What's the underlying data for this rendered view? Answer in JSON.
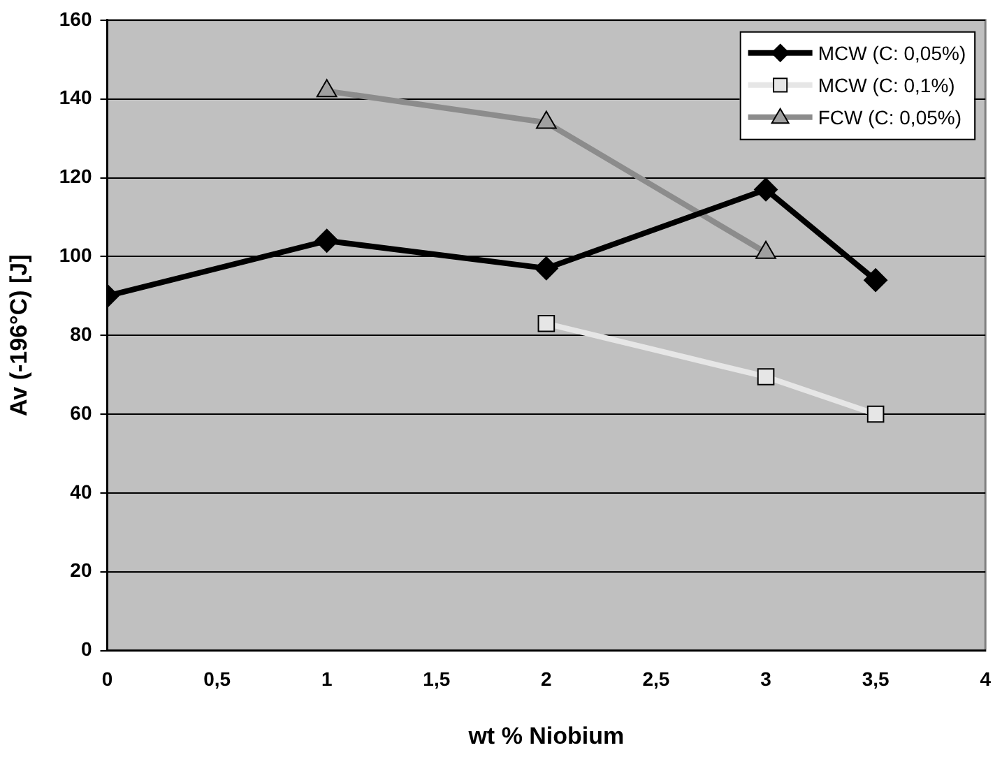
{
  "chart_data": {
    "type": "line",
    "xlabel": "wt % Niobium",
    "ylabel": "Av (-196°C) [J]",
    "xlim": [
      0,
      4
    ],
    "xticks": [
      0,
      {
        "value": 0.5,
        "label": "0,5"
      },
      1,
      {
        "value": 1.5,
        "label": "1,5"
      },
      2,
      {
        "value": 2.5,
        "label": "2,5"
      },
      3,
      {
        "value": 3.5,
        "label": "3,5"
      },
      4
    ],
    "ylim": [
      0,
      160
    ],
    "yticks": [
      0,
      20,
      40,
      60,
      80,
      100,
      120,
      140,
      160
    ],
    "grid": "y",
    "legend": "top right",
    "line_style": "solid",
    "series": [
      {
        "name": "MCW (C: 0,05%)",
        "color": "#000000",
        "marker": "diamond",
        "x": [
          0,
          1,
          2,
          3,
          3.5
        ],
        "values": [
          90,
          104,
          97,
          117,
          94
        ]
      },
      {
        "name": "MCW (C: 0,1%)",
        "color": "#e6e6e6",
        "marker": "square",
        "x": [
          2,
          3,
          3.5
        ],
        "values": [
          83,
          69.5,
          60
        ]
      },
      {
        "name": "FCW (C: 0,05%)",
        "color": "#8c8c8c",
        "marker": "triangle",
        "x": [
          1,
          2,
          3
        ],
        "values": [
          142,
          134,
          101
        ]
      }
    ]
  }
}
